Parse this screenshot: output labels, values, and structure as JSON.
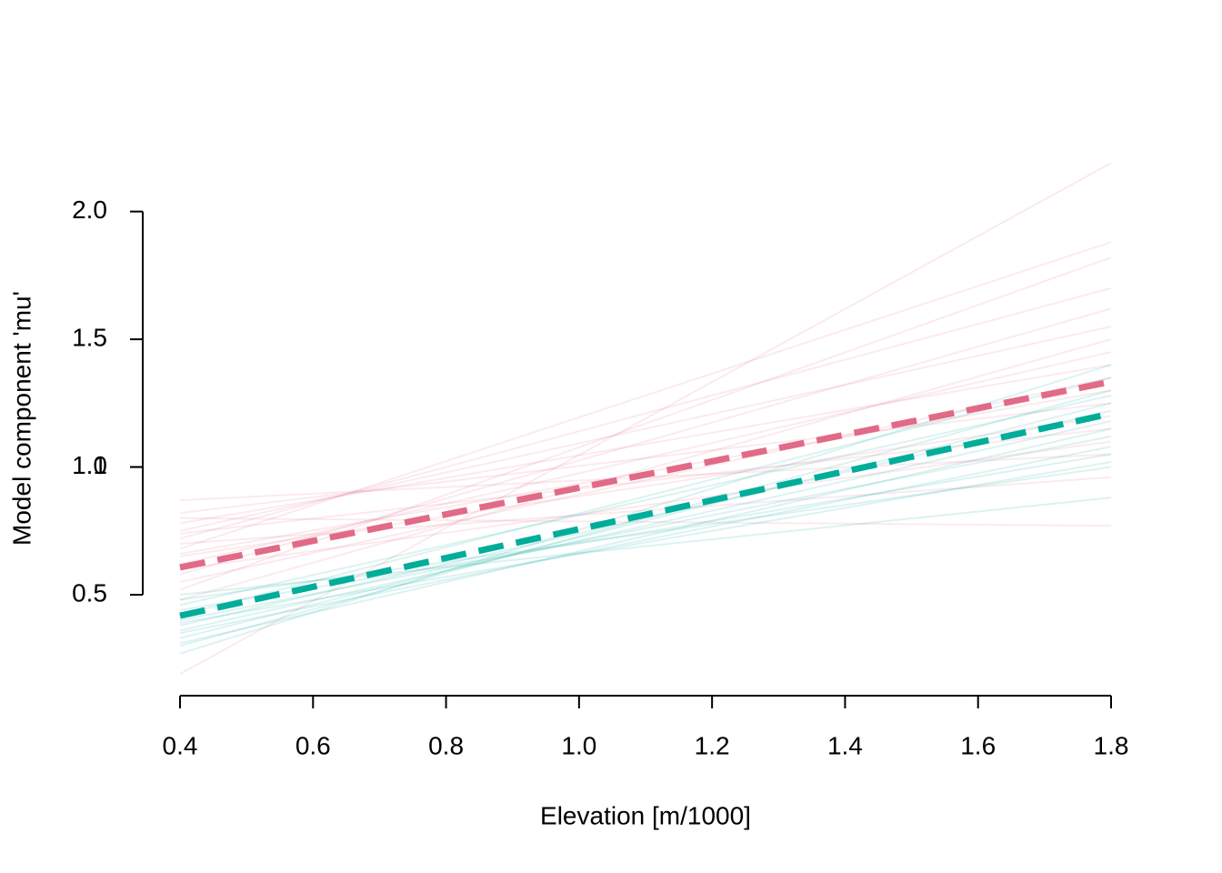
{
  "chart_data": {
    "type": "line",
    "xlabel": "Elevation [m/1000]",
    "ylabel": "Model component 'mu'",
    "x": [
      0.4,
      1.8
    ],
    "xlim": [
      0.4,
      1.8
    ],
    "xticks": [
      {
        "value": 0.4,
        "label": "0.4"
      },
      {
        "value": 0.6,
        "label": "0.6"
      },
      {
        "value": 0.8,
        "label": "0.8"
      },
      {
        "value": 1.0,
        "label": "1.0"
      },
      {
        "value": 1.2,
        "label": "1.2"
      },
      {
        "value": 1.4,
        "label": "1.4"
      },
      {
        "value": 1.6,
        "label": "1.6"
      },
      {
        "value": 1.8,
        "label": "1.8"
      }
    ],
    "ylim": [
      0.105,
      2.23
    ],
    "yticks": [
      0.5,
      1.0,
      {
        "value": 1.0,
        "label": "1.0"
      },
      1.5,
      {
        "value": 2.0,
        "label": "2.0"
      }
    ],
    "series": [
      {
        "color": "rgba(225,106,134,0.14)",
        "values": [
          0.87,
          1.05
        ]
      },
      {
        "color": "rgba(225,106,134,0.14)",
        "values": [
          0.82,
          1.25
        ]
      },
      {
        "color": "rgba(225,106,134,0.14)",
        "values": [
          0.78,
          1.4
        ]
      },
      {
        "color": "rgba(225,106,134,0.14)",
        "values": [
          0.75,
          1.55
        ]
      },
      {
        "color": "rgba(225,106,134,0.14)",
        "values": [
          0.72,
          1.7
        ]
      },
      {
        "color": "rgba(225,106,134,0.14)",
        "values": [
          0.68,
          1.88
        ]
      },
      {
        "color": "rgba(225,106,134,0.14)",
        "values": [
          0.65,
          1.2
        ]
      },
      {
        "color": "rgba(225,106,134,0.14)",
        "values": [
          0.62,
          1.45
        ]
      },
      {
        "color": "rgba(225,106,134,0.14)",
        "values": [
          0.58,
          1.62
        ]
      },
      {
        "color": "rgba(225,106,134,0.14)",
        "values": [
          0.55,
          1.35
        ]
      },
      {
        "color": "rgba(225,106,134,0.14)",
        "values": [
          0.52,
          1.82
        ]
      },
      {
        "color": "rgba(225,106,134,0.14)",
        "values": [
          0.19,
          2.19
        ]
      },
      {
        "color": "rgba(225,106,134,0.14)",
        "values": [
          0.8,
          0.77
        ]
      },
      {
        "color": "rgba(225,106,134,0.14)",
        "values": [
          0.7,
          0.96
        ]
      },
      {
        "color": "rgba(225,106,134,0.14)",
        "values": [
          0.6,
          1.1
        ]
      },
      {
        "color": "rgba(225,106,134,0.14)",
        "values": [
          0.48,
          1.5
        ]
      },
      {
        "color": "rgba(225,106,134,0.14)",
        "values": [
          0.66,
          1.3
        ]
      },
      {
        "color": "rgba(225,106,134,0.14)",
        "values": [
          0.74,
          1.15
        ]
      },
      {
        "color": "rgba(0,173,154,0.14)",
        "values": [
          0.27,
          1.4
        ]
      },
      {
        "color": "rgba(0,173,154,0.14)",
        "values": [
          0.3,
          1.3
        ]
      },
      {
        "color": "rgba(0,173,154,0.14)",
        "values": [
          0.33,
          1.25
        ]
      },
      {
        "color": "rgba(0,173,154,0.14)",
        "values": [
          0.36,
          1.18
        ]
      },
      {
        "color": "rgba(0,173,154,0.14)",
        "values": [
          0.4,
          1.12
        ]
      },
      {
        "color": "rgba(0,173,154,0.14)",
        "values": [
          0.44,
          1.05
        ]
      },
      {
        "color": "rgba(0,173,154,0.14)",
        "values": [
          0.48,
          1.0
        ]
      },
      {
        "color": "rgba(0,173,154,0.14)",
        "values": [
          0.5,
          0.88
        ]
      },
      {
        "color": "rgba(0,173,154,0.14)",
        "values": [
          0.38,
          1.22
        ]
      },
      {
        "color": "rgba(0,173,154,0.14)",
        "values": [
          0.42,
          1.35
        ]
      },
      {
        "color": "rgba(0,173,154,0.14)",
        "values": [
          0.35,
          1.08
        ]
      },
      {
        "color": "rgba(0,173,154,0.14)",
        "values": [
          0.46,
          1.28
        ]
      },
      {
        "color": "rgba(0,173,154,0.14)",
        "values": [
          0.31,
          1.15
        ]
      },
      {
        "color": "rgba(0,173,154,0.14)",
        "values": [
          0.39,
          1.02
        ]
      },
      {
        "color": "#e16a86",
        "linestyle": "dashed",
        "values": [
          0.607,
          1.334
        ]
      },
      {
        "color": "#00ad9a",
        "linestyle": "dashed",
        "values": [
          0.418,
          1.209
        ]
      }
    ]
  }
}
